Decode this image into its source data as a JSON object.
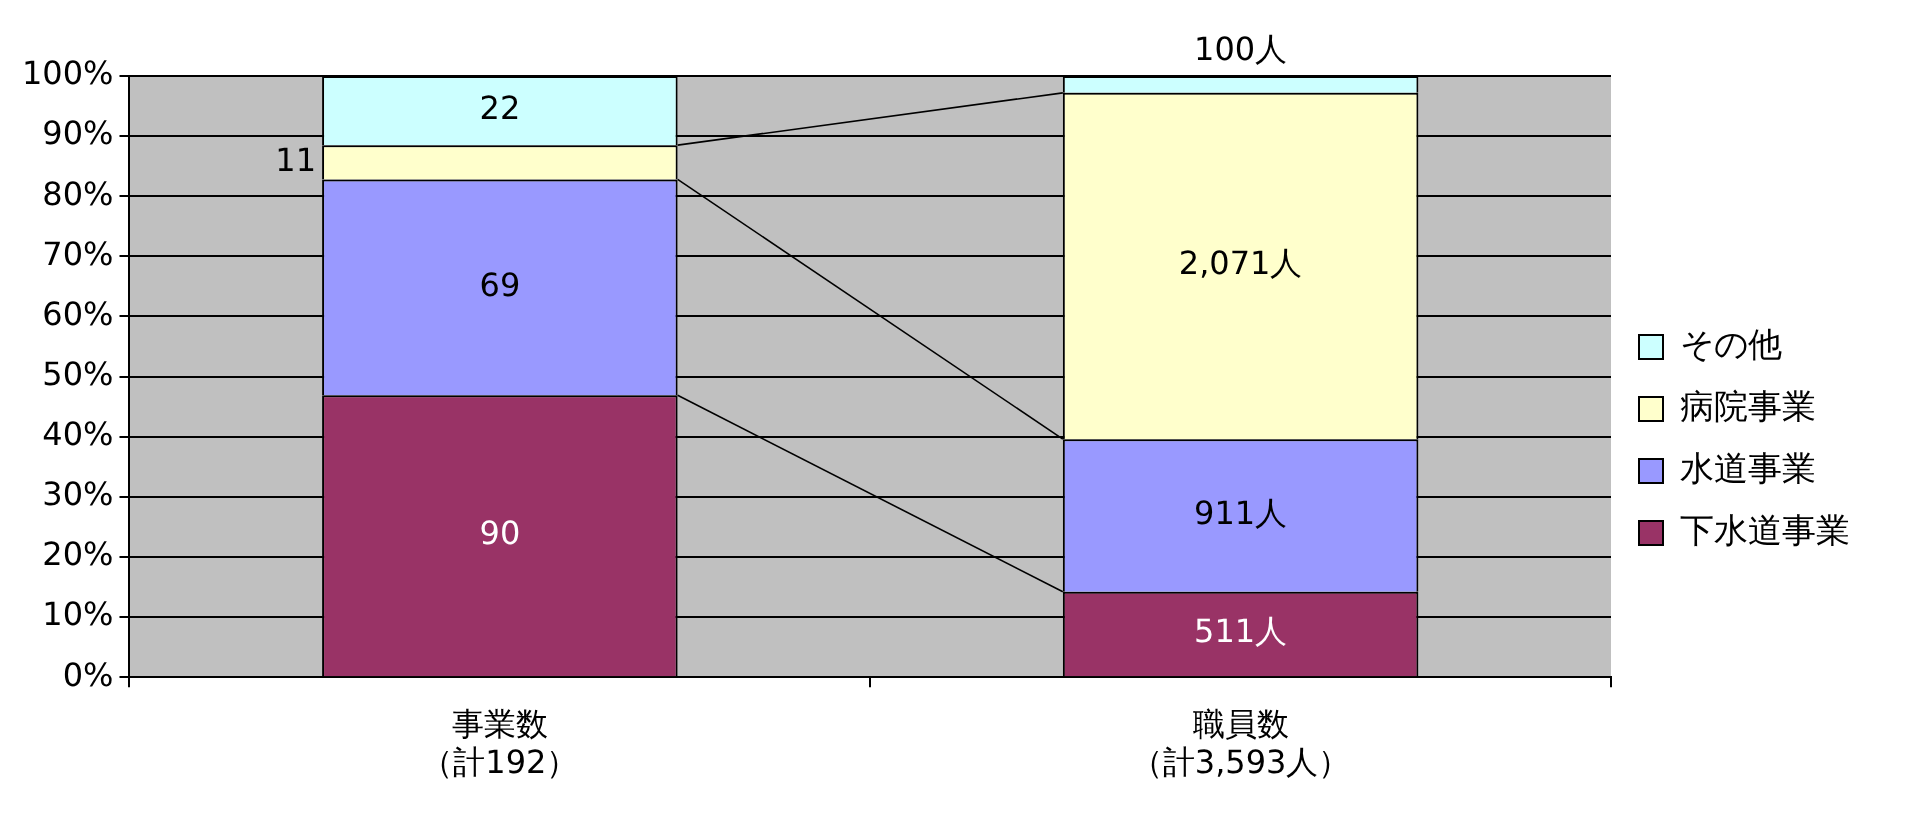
{
  "chart_data": {
    "type": "bar",
    "stacked": true,
    "categories": [
      "事業数（計192）",
      "職員数（計3,593人）"
    ],
    "series": [
      {
        "name": "下水道事業",
        "color": "#993366",
        "values": [
          46.9,
          14.2
        ]
      },
      {
        "name": "水道事業",
        "color": "#9999ff",
        "values": [
          35.9,
          25.4
        ]
      },
      {
        "name": "病院事業",
        "color": "#ffffcc",
        "values": [
          5.7,
          57.6
        ]
      },
      {
        "name": "その他",
        "color": "#ccffff",
        "values": [
          11.5,
          2.8
        ]
      }
    ],
    "annotations": [
      "90",
      "69",
      "11",
      "22",
      "511人",
      "911人",
      "2,071人",
      "100人"
    ],
    "ylim": [
      0,
      100
    ],
    "yticks": [
      {
        "value": 0,
        "label": "0%"
      },
      {
        "value": 10,
        "label": "10%"
      },
      {
        "value": 20,
        "label": "20%"
      },
      {
        "value": 30,
        "label": "30%"
      },
      {
        "value": 40,
        "label": "40%"
      },
      {
        "value": 50,
        "label": "50%"
      },
      {
        "value": 60,
        "label": "60%"
      },
      {
        "value": 70,
        "label": "70%"
      },
      {
        "value": 80,
        "label": "80%"
      },
      {
        "value": 90,
        "label": "90%"
      },
      {
        "value": 100,
        "label": "100%"
      }
    ],
    "grid": "y",
    "legend": "right"
  }
}
